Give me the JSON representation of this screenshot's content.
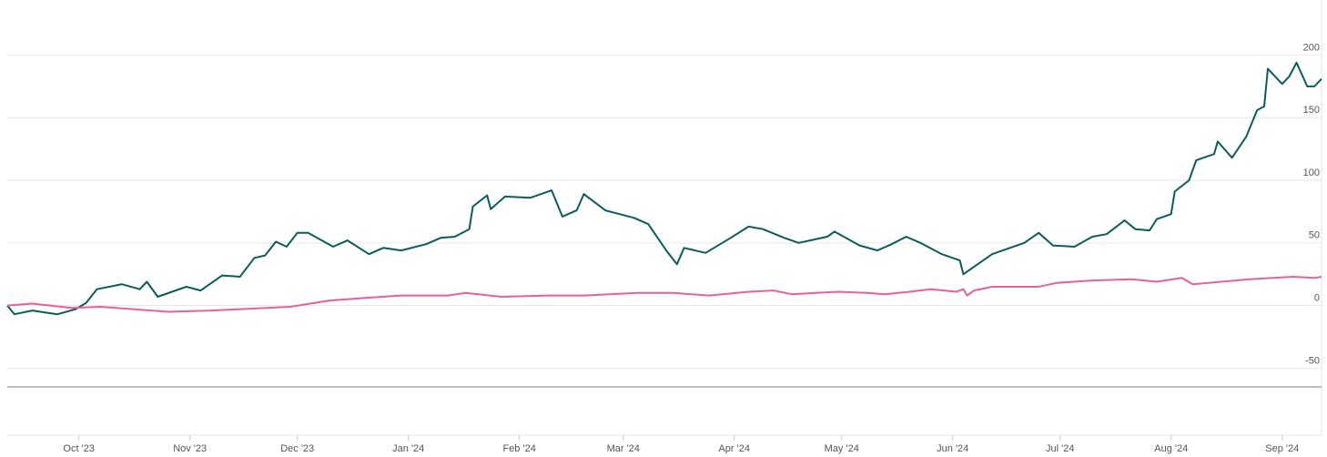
{
  "chart_data": {
    "type": "line",
    "xlim": [
      0,
      367
    ],
    "xticks": [
      {
        "value": 20,
        "label": "Oct '23"
      },
      {
        "value": 51,
        "label": "Nov '23"
      },
      {
        "value": 81,
        "label": "Dec '23"
      },
      {
        "value": 112,
        "label": "Jan '24"
      },
      {
        "value": 143,
        "label": "Feb '24"
      },
      {
        "value": 172,
        "label": "Mar '24"
      },
      {
        "value": 203,
        "label": "Apr '24"
      },
      {
        "value": 233,
        "label": "May '24"
      },
      {
        "value": 264,
        "label": "Jun '24"
      },
      {
        "value": 294,
        "label": "Jul '24"
      },
      {
        "value": 325,
        "label": "Aug '24"
      },
      {
        "value": 356,
        "label": "Sep '24"
      }
    ],
    "ylim": [
      -65,
      244
    ],
    "yticks": [
      -50,
      0,
      50,
      100,
      150,
      200
    ],
    "grid": true,
    "series": [
      {
        "color": "#0b5c5a",
        "x": [
          0,
          2,
          7,
          14,
          19,
          22,
          25,
          32,
          37,
          39,
          42,
          50,
          54,
          60,
          65,
          69,
          72,
          75,
          78,
          81,
          84,
          91,
          95,
          101,
          105,
          110,
          117,
          121,
          125,
          129,
          130,
          134,
          135,
          139,
          146,
          152,
          155,
          159,
          161,
          167,
          171,
          175,
          179,
          184,
          187,
          189,
          195,
          202,
          207,
          211,
          217,
          221,
          229,
          231,
          238,
          243,
          247,
          251,
          255,
          261,
          266,
          267,
          271,
          275,
          284,
          288,
          292,
          298,
          303,
          307,
          312,
          315,
          319,
          321,
          325,
          326,
          330,
          332,
          337,
          338,
          342,
          346,
          349,
          351,
          352,
          356,
          358,
          360,
          363,
          365,
          367
        ],
        "values": [
          0,
          -7,
          -4,
          -7,
          -3,
          2,
          13,
          17,
          13,
          19,
          7,
          15,
          12,
          24,
          23,
          38,
          40,
          51,
          47,
          58,
          58,
          47,
          52,
          41,
          46,
          44,
          49,
          54,
          55,
          61,
          79,
          88,
          77,
          87,
          86,
          92,
          71,
          76,
          89,
          76,
          73,
          70,
          65,
          44,
          33,
          46,
          42,
          54,
          63,
          61,
          54,
          50,
          55,
          59,
          48,
          44,
          49,
          55,
          50,
          41,
          36,
          25,
          33,
          41,
          50,
          58,
          48,
          47,
          55,
          57,
          68,
          61,
          60,
          69,
          73,
          91,
          100,
          116,
          121,
          131,
          118,
          135,
          156,
          159,
          189,
          177,
          183,
          194,
          175,
          175,
          181
        ]
      },
      {
        "color": "#e8609a",
        "x": [
          0,
          7,
          18,
          26,
          45,
          57,
          79,
          90,
          100,
          110,
          123,
          128,
          138,
          151,
          161,
          176,
          186,
          196,
          207,
          214,
          219,
          232,
          240,
          245,
          252,
          258,
          265,
          267,
          268,
          270,
          275,
          288,
          293,
          303,
          314,
          321,
          328,
          331,
          339,
          347,
          359,
          365,
          367
        ],
        "values": [
          0,
          1.5,
          -2,
          -1,
          -5,
          -4,
          -1,
          4,
          6,
          8,
          8,
          10,
          7,
          8,
          8,
          10,
          10,
          8,
          11,
          12,
          9,
          11,
          10,
          9,
          11,
          13,
          11,
          13,
          8,
          12,
          15,
          15,
          18,
          20,
          21,
          19,
          22,
          17,
          19,
          21,
          23,
          22,
          23
        ]
      }
    ]
  }
}
